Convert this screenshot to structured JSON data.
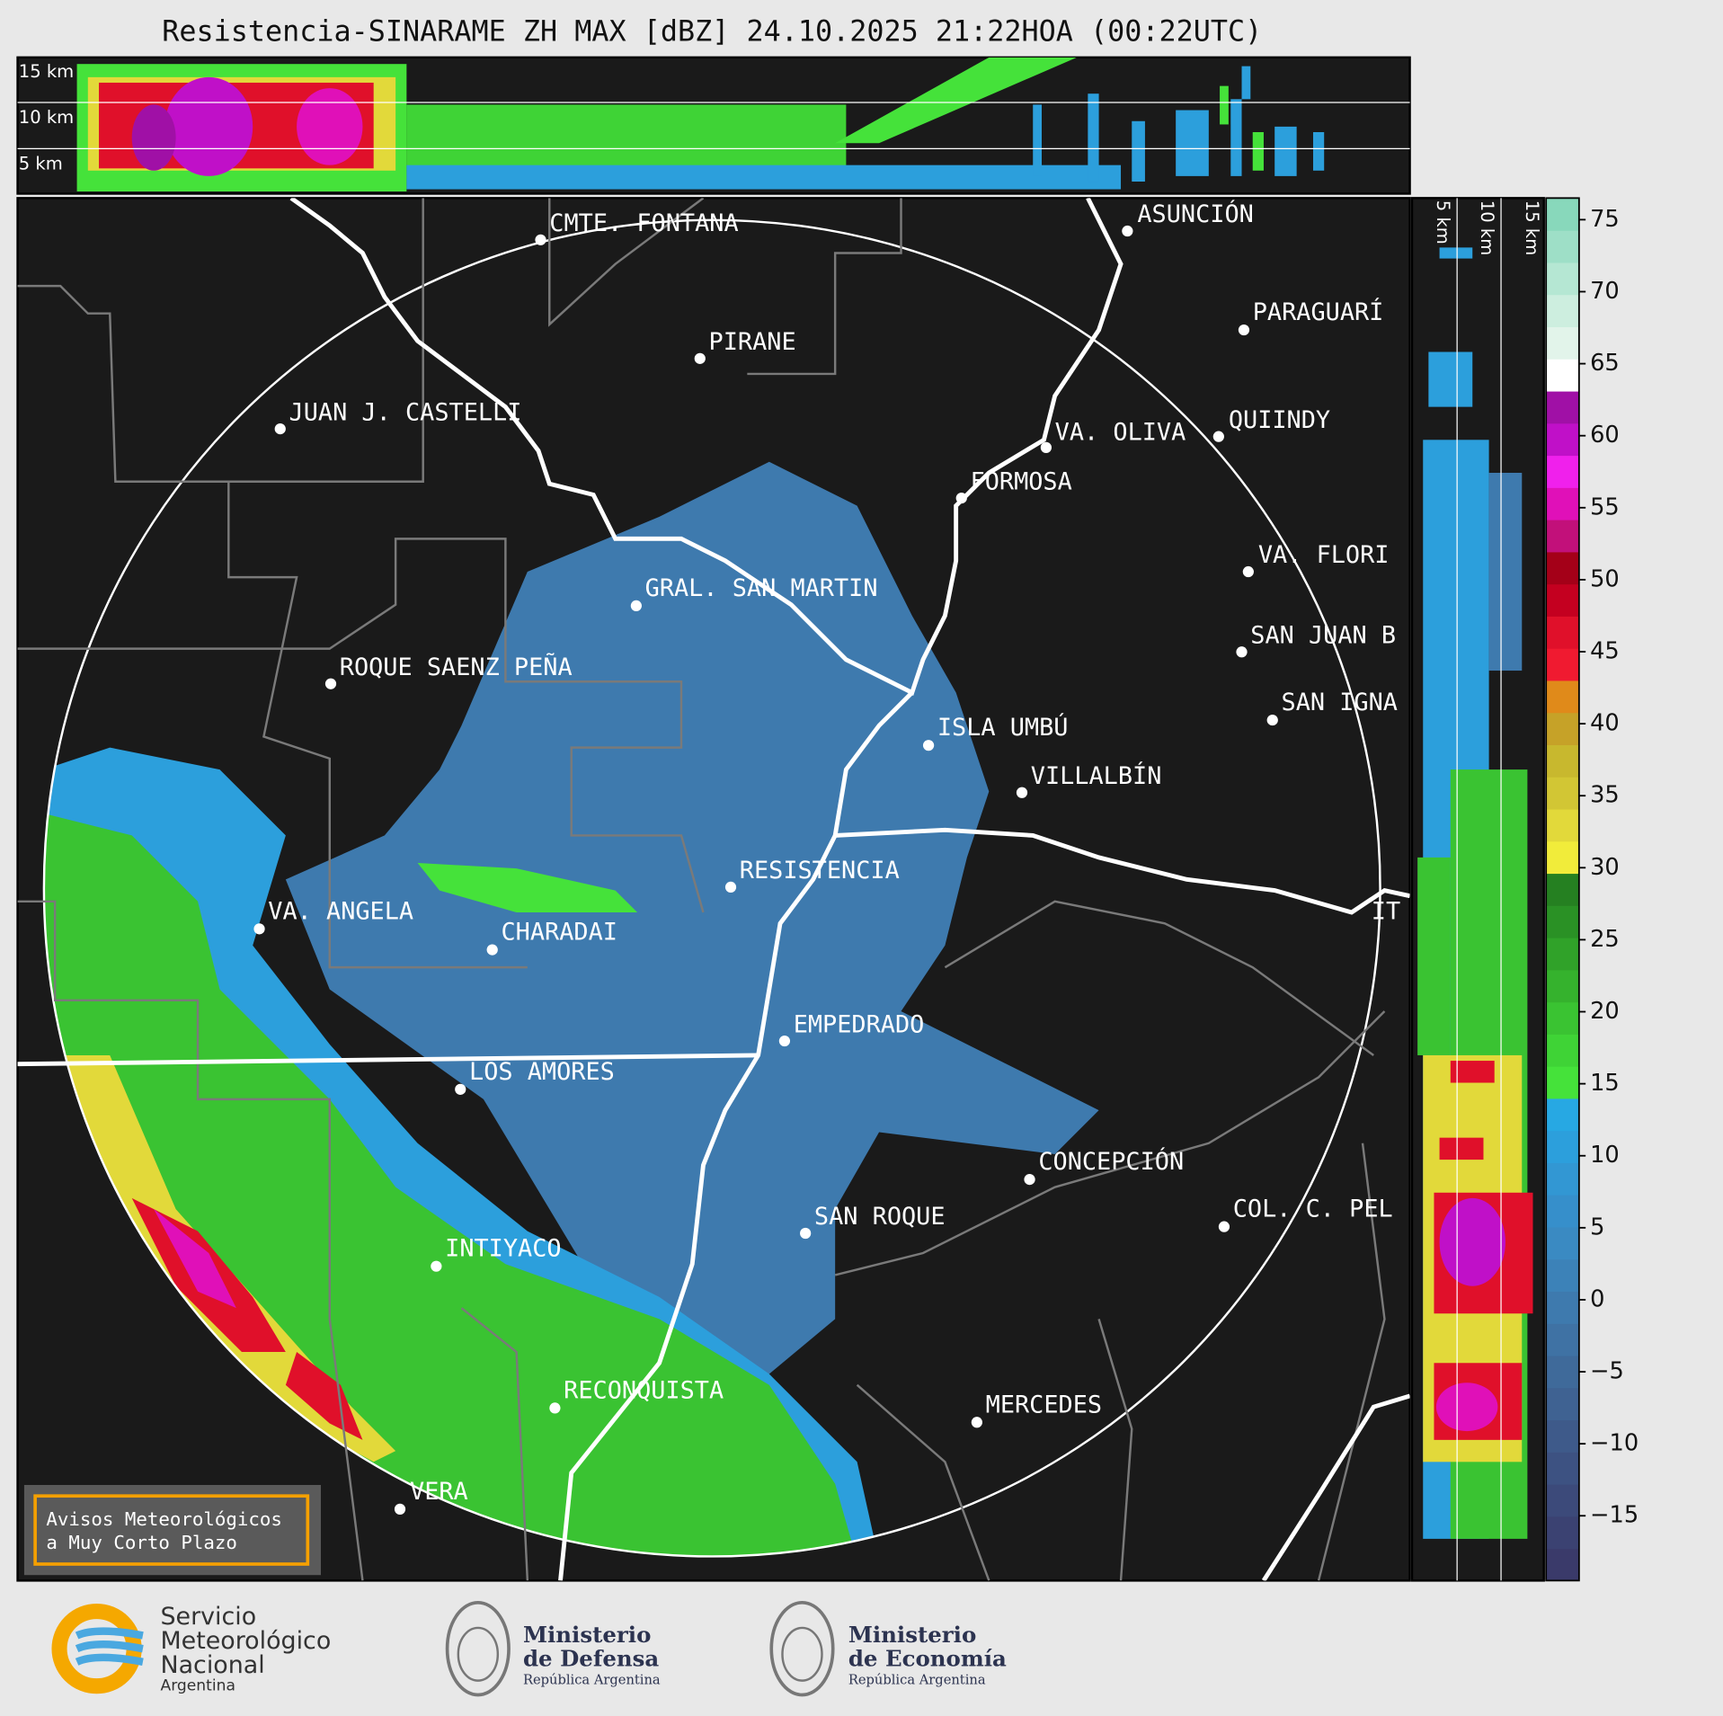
{
  "title": "Resistencia-SINARAME ZH MAX [dBZ] 24.10.2025 21:22HOA (00:22UTC)",
  "top_heights": [
    "15 km",
    "10 km",
    "5 km"
  ],
  "side_heights": [
    "5 km",
    "10 km",
    "15 km"
  ],
  "places": [
    "CMTE. FONTANA",
    "PIRANE",
    "JUAN J. CASTELLI",
    "ASUNCIÓN",
    "PARAGUARÍ",
    "VA. OLIVA",
    "QUIINDY",
    "FORMOSA",
    "VA. FLORI",
    "SAN JUAN B",
    "SAN IGNA",
    "GRAL. SAN MARTIN",
    "ROQUE SAENZ PEÑA",
    "ISLA UMBÚ",
    "VILLALBÍN",
    "RESISTENCIA",
    "VA. ANGELA",
    "CHARADAI",
    "IT",
    "EMPEDRADO",
    "LOS AMORES",
    "CONCEPCIÓN",
    "SAN ROQUE",
    "COL. C. PEL",
    "INTIYACO",
    "RECONQUISTA",
    "MERCEDES",
    "VERA"
  ],
  "colorbar": {
    "lim": [
      -19.5,
      76.5
    ],
    "ticks": [
      75,
      70,
      65,
      60,
      55,
      50,
      45,
      40,
      35,
      30,
      25,
      20,
      15,
      10,
      5,
      0,
      {
        "value": -5,
        "label": "−5"
      },
      {
        "value": -10,
        "label": "−10"
      },
      {
        "value": -15,
        "label": "−15"
      }
    ],
    "colors": [
      "#3a3a6a",
      "#3b4272",
      "#3c4a7a",
      "#3d5282",
      "#3e5a8a",
      "#3f6292",
      "#3f6a9a",
      "#3f72a4",
      "#3e7aae",
      "#3c82b8",
      "#3a8ac2",
      "#368fcb",
      "#3297d3",
      "#2c9fdc",
      "#27a8e3",
      "#45e23a",
      "#3fd336",
      "#3ac332",
      "#35b22d",
      "#30a229",
      "#2a9125",
      "#258021",
      "#f1ec3a",
      "#e2d93a",
      "#d2c634",
      "#c8b82e",
      "#c6a228",
      "#e08a1a",
      "#f01a30",
      "#e0102a",
      "#c40020",
      "#a40018",
      "#c2107a",
      "#e010b8",
      "#f020ec",
      "#c010c8",
      "#a010a6",
      "#ffffff",
      "#e2f4ea",
      "#cdeedf",
      "#b5e7d3",
      "#9edfc7",
      "#88d8bb"
    ]
  },
  "warning": [
    "Avisos Meteorológicos",
    "a Muy Corto Plazo"
  ],
  "logos": {
    "smn": [
      "Servicio",
      "Meteorológico",
      "Nacional",
      "Argentina"
    ],
    "defensa": [
      "Ministerio",
      "de Defensa",
      "República Argentina"
    ],
    "economia": [
      "Ministerio",
      "de Economía",
      "República Argentina"
    ]
  }
}
